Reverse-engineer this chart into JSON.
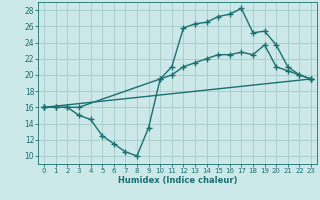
{
  "background_color": "#cce8e8",
  "grid_color": "#aacfcf",
  "line_color": "#1a7070",
  "line_width": 1.0,
  "marker": "+",
  "marker_size": 4,
  "marker_edge_width": 1.0,
  "xlabel": "Humidex (Indice chaleur)",
  "xlim": [
    -0.5,
    23.5
  ],
  "ylim": [
    9,
    29
  ],
  "yticks": [
    10,
    12,
    14,
    16,
    18,
    20,
    22,
    24,
    26,
    28
  ],
  "xticks": [
    0,
    1,
    2,
    3,
    4,
    5,
    6,
    7,
    8,
    9,
    10,
    11,
    12,
    13,
    14,
    15,
    16,
    17,
    18,
    19,
    20,
    21,
    22,
    23
  ],
  "series": [
    {
      "x": [
        0,
        1,
        2,
        3,
        4,
        5,
        6,
        7,
        8,
        9,
        10,
        11,
        12,
        13,
        14,
        15,
        16,
        17,
        18,
        19,
        20,
        21,
        22,
        23
      ],
      "y": [
        16,
        16,
        16,
        15,
        14.5,
        12.5,
        11.5,
        10.5,
        10,
        13.5,
        19.5,
        21,
        25.8,
        26.3,
        26.5,
        27.2,
        27.5,
        28.2,
        25.2,
        25.4,
        23.7,
        21,
        20,
        19.5
      ]
    },
    {
      "x": [
        0,
        1,
        2,
        3,
        10,
        11,
        12,
        13,
        14,
        15,
        16,
        17,
        18,
        19,
        20,
        21,
        22,
        23
      ],
      "y": [
        16,
        16,
        16,
        16,
        19.5,
        20,
        21,
        21.5,
        22,
        22.5,
        22.5,
        22.8,
        22.5,
        23.7,
        21,
        20.5,
        20,
        19.5
      ]
    },
    {
      "x": [
        0,
        23
      ],
      "y": [
        16,
        19.5
      ]
    }
  ]
}
